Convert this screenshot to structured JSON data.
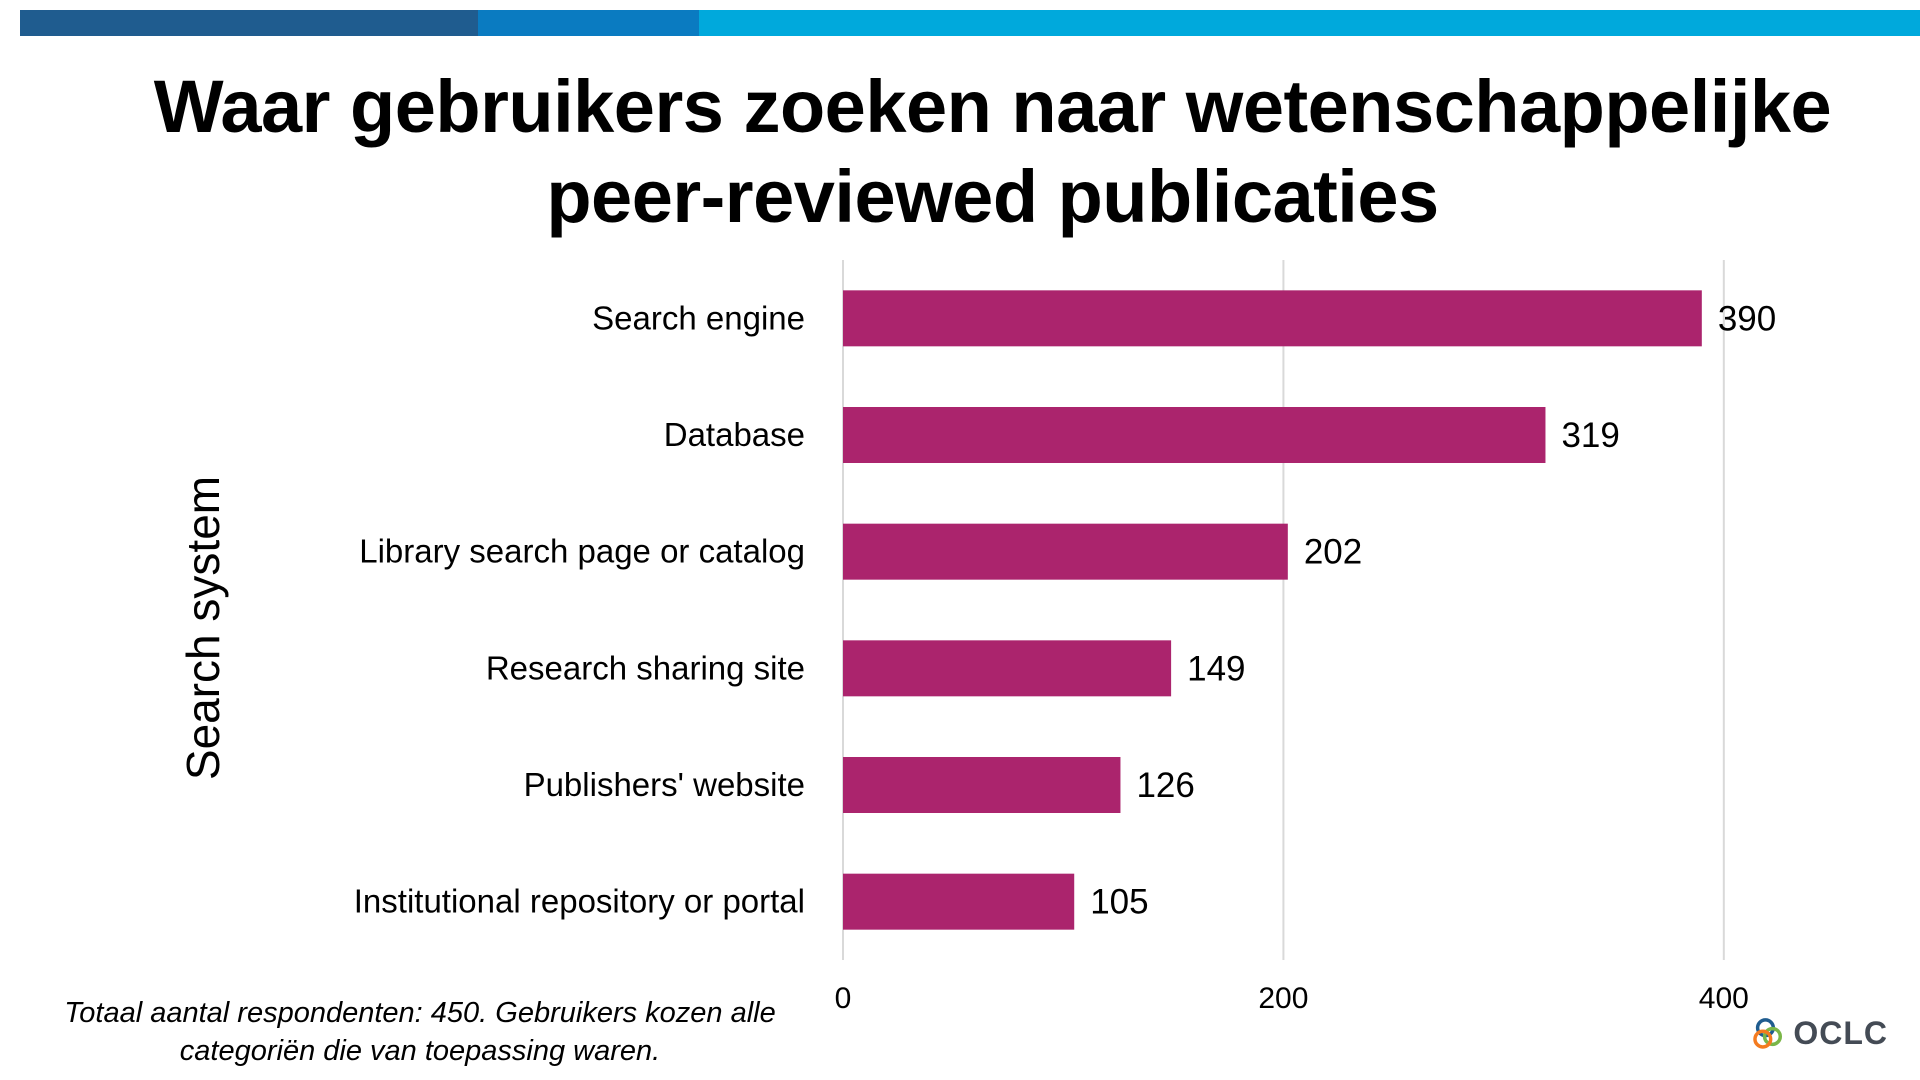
{
  "title_line1": "Waar gebruikers zoeken naar wetenschappelijke",
  "title_line2": "peer-reviewed publicaties",
  "footnote_line1": "Totaal aantal respondenten: 450. Gebruikers kozen alle",
  "footnote_line2": "categoriën die van toepassing waren.",
  "logo_text": "OCLC",
  "colors": {
    "band": [
      "#1f5c8f",
      "#0a7bc1",
      "#00a9dc"
    ],
    "bar": "#ab246d",
    "grid": "#d9d9d9",
    "text": "#000000"
  },
  "chart_data": {
    "type": "bar",
    "orientation": "horizontal",
    "categories": [
      "Search engine",
      "Database",
      "Library search page or catalog",
      "Research sharing site",
      "Publishers' website",
      "Institutional repository or portal"
    ],
    "values": [
      390,
      319,
      202,
      149,
      126,
      105
    ],
    "ylabel": "Search system",
    "xlabel": "",
    "xlim": [
      0,
      480
    ],
    "xticks": [
      0,
      200,
      400
    ],
    "grid": true,
    "data_labels": true
  }
}
